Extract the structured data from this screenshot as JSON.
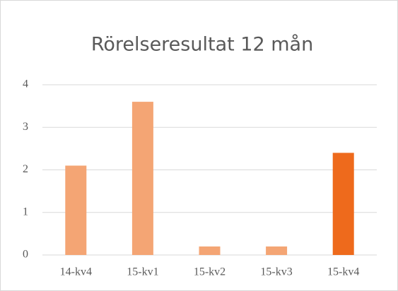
{
  "chart_data": {
    "type": "bar",
    "title": "Rörelseresultat 12 mån",
    "categories": [
      "14-kv4",
      "15-kv1",
      "15-kv2",
      "15-kv3",
      "15-kv4"
    ],
    "values": [
      2.1,
      3.6,
      0.2,
      0.2,
      2.4
    ],
    "colors": [
      "#f4a574",
      "#f4a574",
      "#f4a574",
      "#f4a574",
      "#ee6a1c"
    ],
    "ylim": [
      0,
      4
    ],
    "yticks": [
      0,
      1,
      2,
      3,
      4
    ],
    "grid": true
  }
}
